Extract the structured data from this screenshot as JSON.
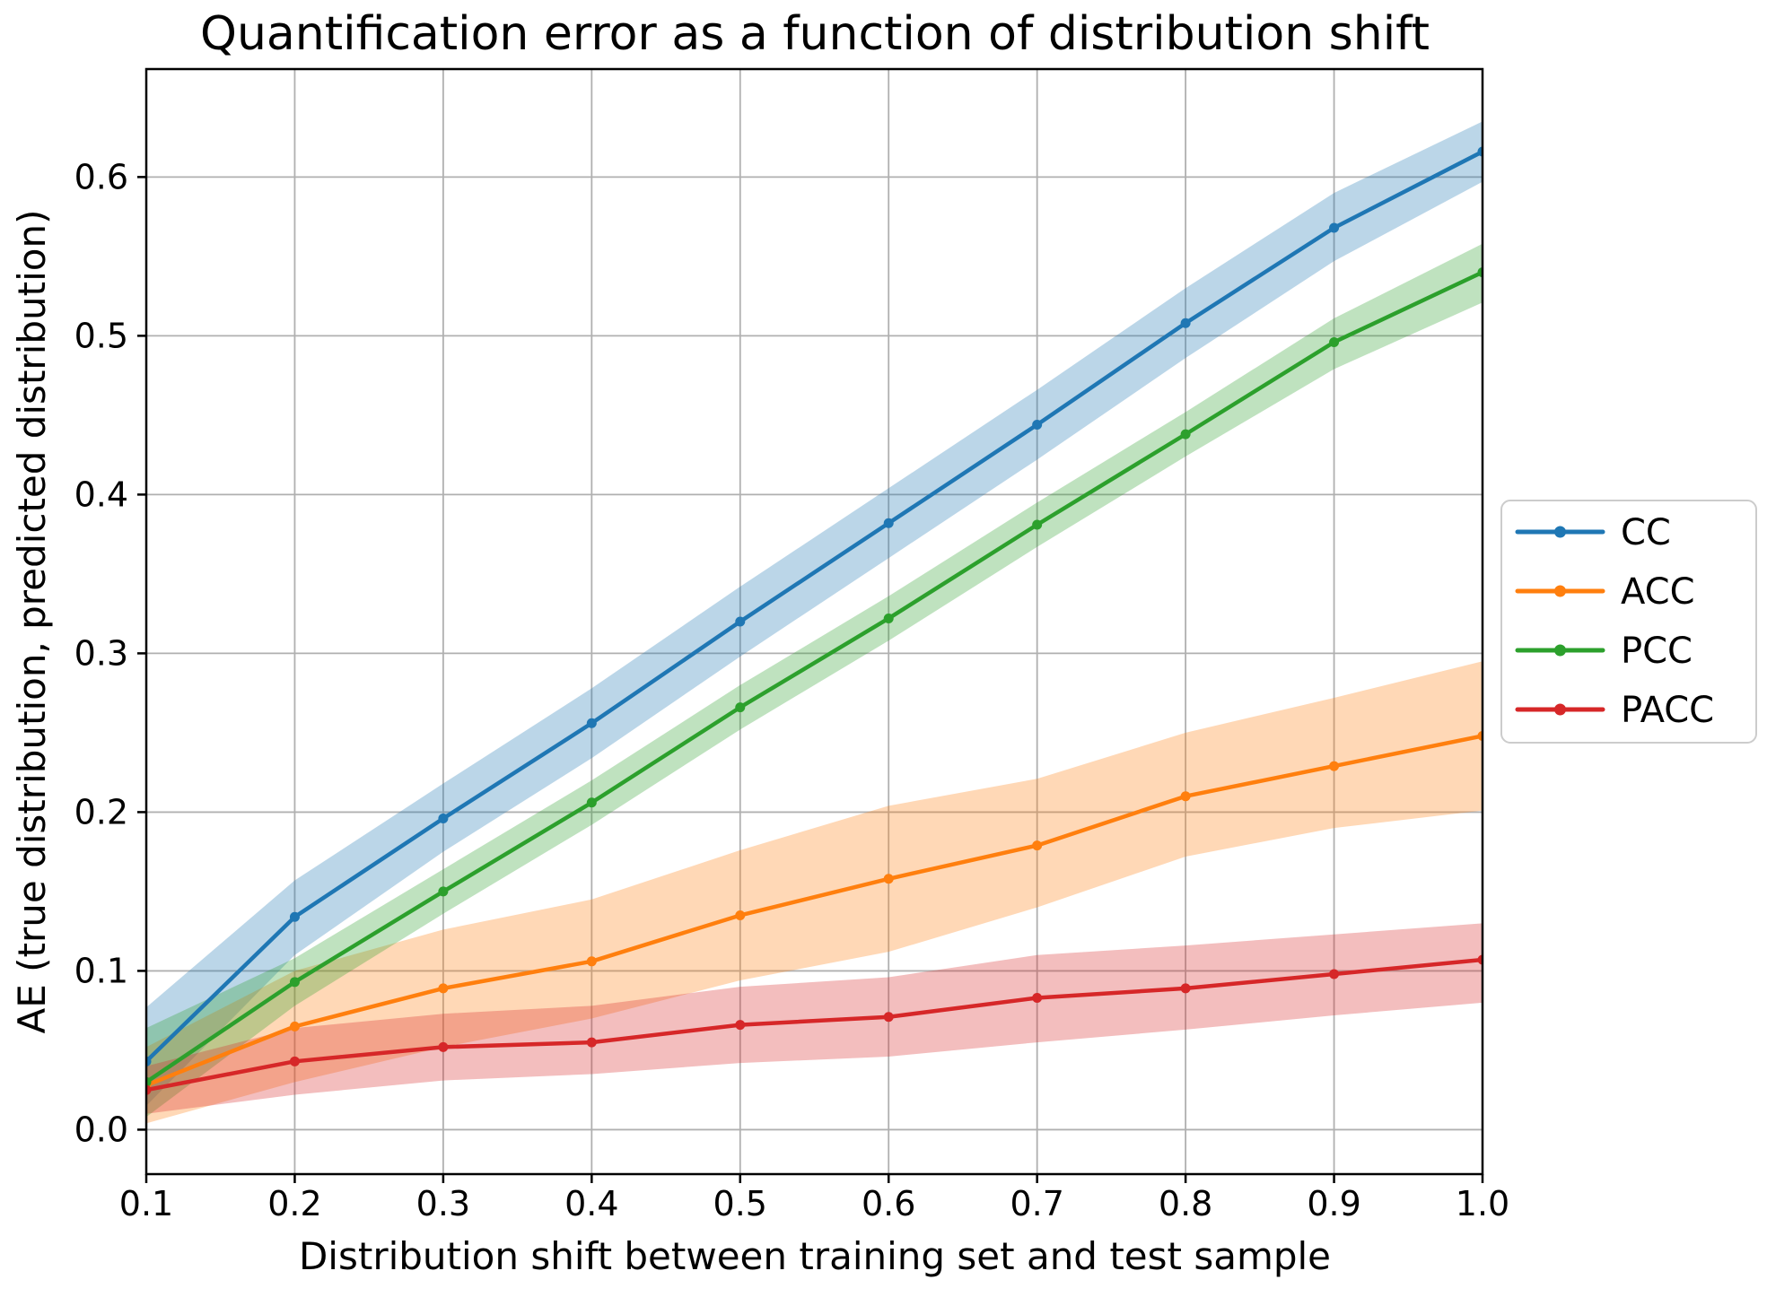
{
  "chart_data": {
    "type": "line",
    "title": "Quantification error as a function of distribution shift",
    "xlabel": "Distribution shift between training set and test sample",
    "ylabel": "AE (true distribution, predicted distribution)",
    "x": [
      0.1,
      0.2,
      0.3,
      0.4,
      0.5,
      0.6,
      0.7,
      0.8,
      0.9,
      1.0
    ],
    "xlim": [
      0.1,
      1.0
    ],
    "ylim": [
      -0.028,
      0.668
    ],
    "xticks": {
      "values": [
        0.1,
        0.2,
        0.3,
        0.4,
        0.5,
        0.6,
        0.7,
        0.8,
        0.9,
        1.0
      ],
      "labels": [
        "0.1",
        "0.2",
        "0.3",
        "0.4",
        "0.5",
        "0.6",
        "0.7",
        "0.8",
        "0.9",
        "1.0"
      ]
    },
    "yticks": {
      "values": [
        0.0,
        0.1,
        0.2,
        0.3,
        0.4,
        0.5,
        0.6
      ],
      "labels": [
        "0.0",
        "0.1",
        "0.2",
        "0.3",
        "0.4",
        "0.5",
        "0.6"
      ]
    },
    "grid": true,
    "grid_color": "#b0b0b0",
    "band_alpha": 0.3,
    "legend": {
      "position": "center-right-outside",
      "entries": [
        "CC",
        "ACC",
        "PCC",
        "PACC"
      ]
    },
    "series": [
      {
        "name": "CC",
        "color": "#1f77b4",
        "values": [
          0.043,
          0.134,
          0.196,
          0.256,
          0.32,
          0.382,
          0.444,
          0.508,
          0.568,
          0.616
        ],
        "band_lower": [
          0.015,
          0.11,
          0.175,
          0.234,
          0.298,
          0.36,
          0.422,
          0.486,
          0.547,
          0.597
        ],
        "band_upper": [
          0.077,
          0.157,
          0.218,
          0.278,
          0.342,
          0.404,
          0.466,
          0.53,
          0.59,
          0.635
        ]
      },
      {
        "name": "ACC",
        "color": "#ff7f0e",
        "values": [
          0.028,
          0.065,
          0.089,
          0.106,
          0.135,
          0.158,
          0.179,
          0.21,
          0.229,
          0.248
        ],
        "band_lower": [
          0.004,
          0.03,
          0.052,
          0.07,
          0.094,
          0.112,
          0.14,
          0.172,
          0.19,
          0.201
        ],
        "band_upper": [
          0.052,
          0.1,
          0.126,
          0.145,
          0.176,
          0.204,
          0.221,
          0.25,
          0.272,
          0.295
        ]
      },
      {
        "name": "PCC",
        "color": "#2ca02c",
        "values": [
          0.03,
          0.093,
          0.15,
          0.206,
          0.266,
          0.322,
          0.381,
          0.438,
          0.496,
          0.54
        ],
        "band_lower": [
          0.008,
          0.078,
          0.136,
          0.192,
          0.252,
          0.308,
          0.367,
          0.424,
          0.479,
          0.521
        ],
        "band_upper": [
          0.064,
          0.108,
          0.164,
          0.22,
          0.28,
          0.336,
          0.395,
          0.452,
          0.511,
          0.558
        ]
      },
      {
        "name": "PACC",
        "color": "#d62728",
        "values": [
          0.025,
          0.043,
          0.052,
          0.055,
          0.066,
          0.071,
          0.083,
          0.089,
          0.098,
          0.107
        ],
        "band_lower": [
          0.01,
          0.022,
          0.031,
          0.035,
          0.042,
          0.046,
          0.055,
          0.063,
          0.072,
          0.08
        ],
        "band_upper": [
          0.04,
          0.064,
          0.073,
          0.078,
          0.09,
          0.096,
          0.11,
          0.116,
          0.123,
          0.13
        ]
      }
    ]
  }
}
